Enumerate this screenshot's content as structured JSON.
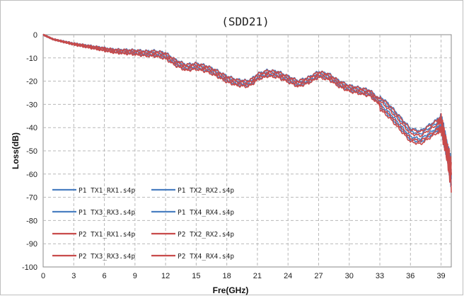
{
  "chart_data": {
    "type": "line",
    "title": "(SDD21)",
    "xlabel": "Fre(GHz)",
    "ylabel": "Loss(dB)",
    "xlim": [
      0,
      40
    ],
    "ylim": [
      -100,
      0
    ],
    "xticks": [
      "0",
      "3",
      "6",
      "9",
      "12",
      "15",
      "18",
      "21",
      "24",
      "27",
      "30",
      "33",
      "36",
      "39"
    ],
    "yticks": [
      "0",
      "-10",
      "-20",
      "-30",
      "-40",
      "-50",
      "-60",
      "-70",
      "-80",
      "-90",
      "-100"
    ],
    "grid": true,
    "gridStyle": "dashed",
    "legend_position": "lower-left",
    "colors": {
      "p1": "#4a7fc1",
      "p2": "#c84b4b"
    },
    "series": [
      {
        "name": "P1 TX1_RX1.s4p",
        "group": "p1",
        "offset": 0.6
      },
      {
        "name": "P1 TX2_RX2.s4p",
        "group": "p1",
        "offset": -0.4
      },
      {
        "name": "P1 TX3_RX3.s4p",
        "group": "p1",
        "offset": 1.2
      },
      {
        "name": "P1 TX4_RX4.s4p",
        "group": "p1",
        "offset": -1.0
      },
      {
        "name": "P2 TX1_RX1.s4p",
        "group": "p2",
        "offset": 0.2
      },
      {
        "name": "P2 TX2_RX2.s4p",
        "group": "p2",
        "offset": -0.8
      },
      {
        "name": "P2 TX3_RX3.s4p",
        "group": "p2",
        "offset": 1.0
      },
      {
        "name": "P2 TX4_RX4.s4p",
        "group": "p2",
        "offset": -1.4
      }
    ],
    "base_curve": {
      "x": [
        0,
        1,
        3,
        5,
        7,
        9,
        10,
        11,
        12,
        13,
        14,
        15,
        16,
        17,
        18,
        19,
        20,
        20.5,
        21,
        22,
        23,
        24,
        25,
        26,
        27,
        28,
        29,
        30,
        31,
        32,
        33,
        34,
        35,
        36,
        37,
        38,
        39,
        39.5,
        40
      ],
      "y": [
        0,
        -2,
        -4,
        -5.5,
        -7,
        -7.5,
        -8,
        -8,
        -9,
        -12,
        -14,
        -13.5,
        -14.5,
        -16.5,
        -19,
        -20.5,
        -21,
        -20,
        -18,
        -16.5,
        -17,
        -19,
        -21,
        -19.5,
        -17,
        -18,
        -21,
        -23,
        -24,
        -25,
        -29,
        -33,
        -38,
        -43,
        -44,
        -41,
        -38,
        -48,
        -60
      ]
    }
  }
}
